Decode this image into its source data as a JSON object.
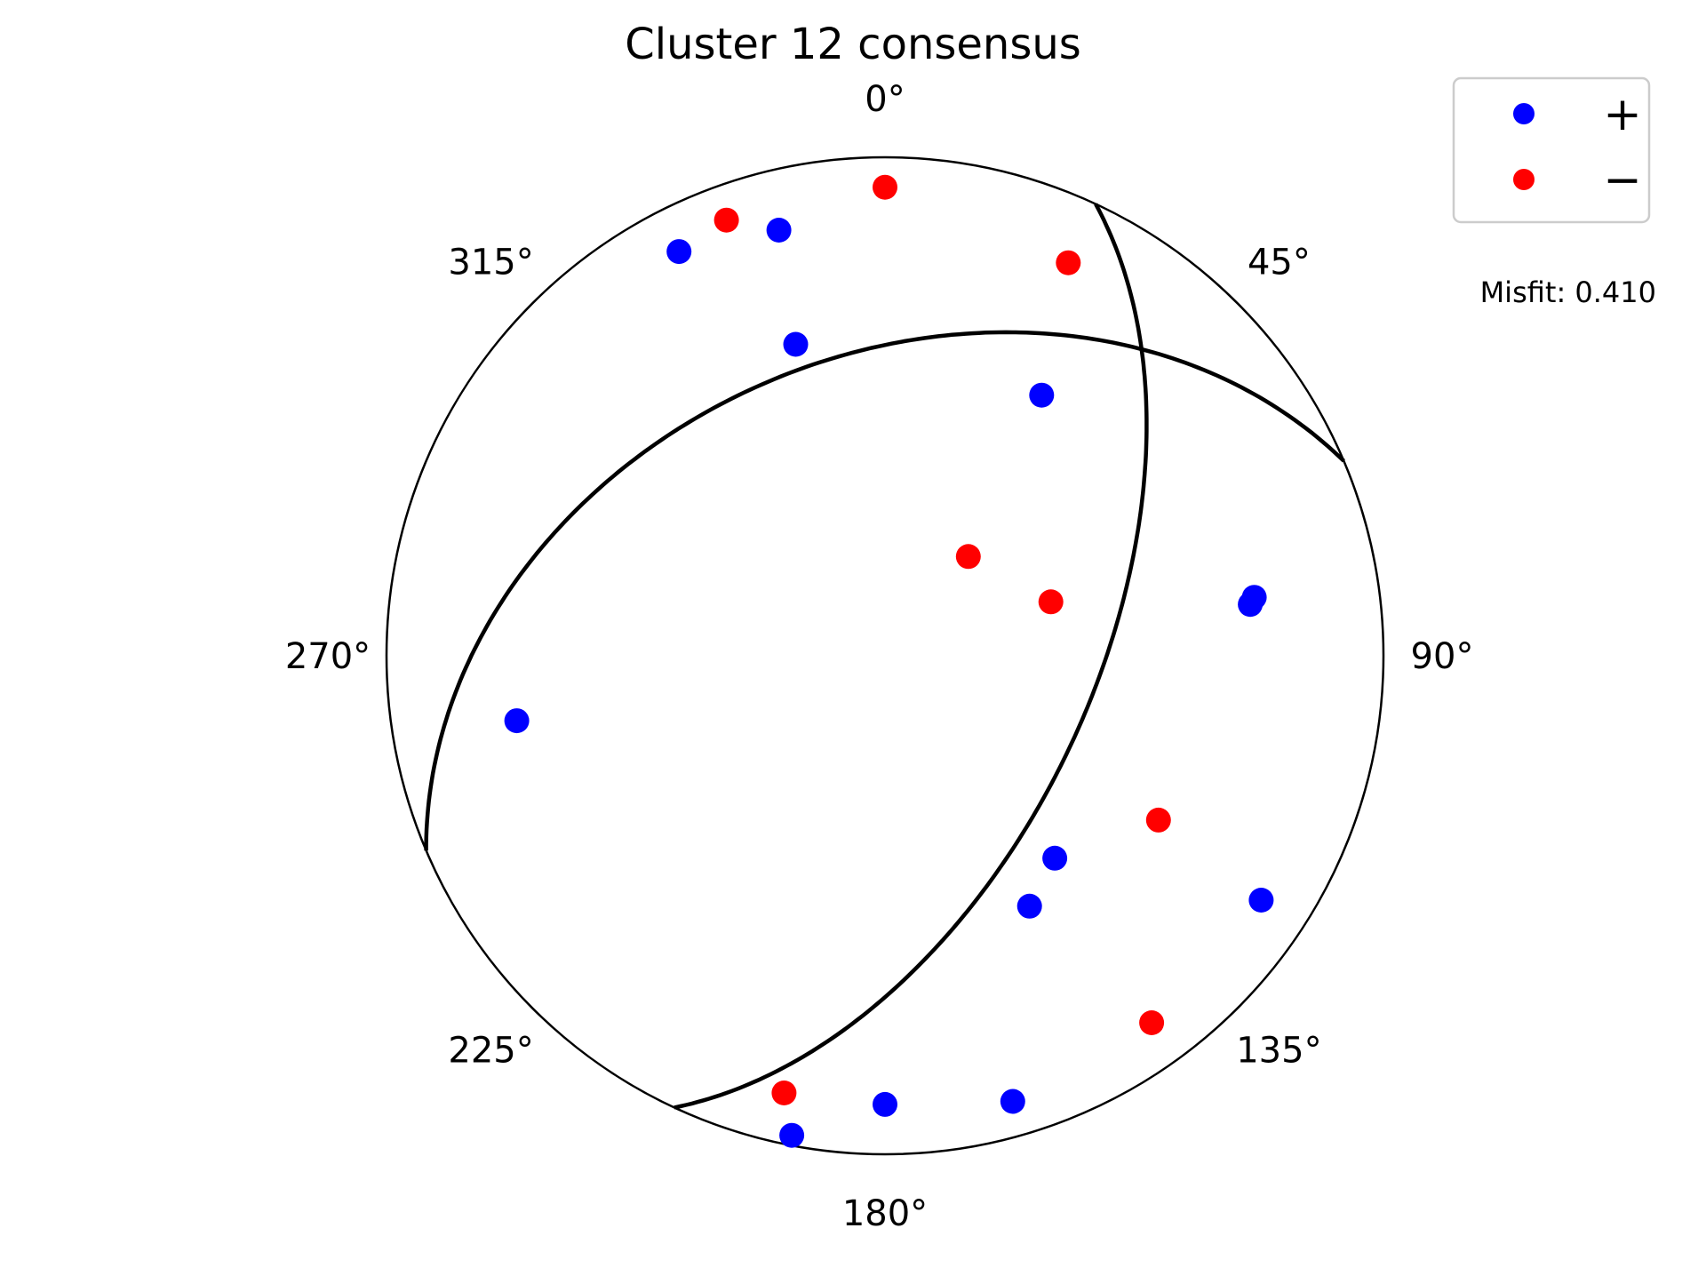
{
  "chart_data": {
    "type": "scatter",
    "projection": "polar-stereonet",
    "title": "Cluster 12 consensus",
    "angle_ticks": [
      {
        "deg": 0,
        "label": "0°"
      },
      {
        "deg": 45,
        "label": "45°"
      },
      {
        "deg": 90,
        "label": "90°"
      },
      {
        "deg": 135,
        "label": "135°"
      },
      {
        "deg": 180,
        "label": "180°"
      },
      {
        "deg": 225,
        "label": "225°"
      },
      {
        "deg": 270,
        "label": "270°"
      },
      {
        "deg": 315,
        "label": "315°"
      }
    ],
    "radius_range": [
      0,
      1
    ],
    "grid": false,
    "legend_position": "top-right",
    "misfit_label": "Misfit: 0.410",
    "series": [
      {
        "name": "+",
        "color": "#0000ff",
        "points": [
          {
            "azimuth": 333,
            "r": 0.91
          },
          {
            "azimuth": 346,
            "r": 0.88
          },
          {
            "azimuth": 344,
            "r": 0.65
          },
          {
            "azimuth": 31,
            "r": 0.61
          },
          {
            "azimuth": 81,
            "r": 0.75
          },
          {
            "azimuth": 260,
            "r": 0.75
          },
          {
            "azimuth": 123,
            "r": 0.9
          },
          {
            "azimuth": 140,
            "r": 0.53
          },
          {
            "azimuth": 150,
            "r": 0.58
          },
          {
            "azimuth": 180,
            "r": 0.9
          },
          {
            "azimuth": 164,
            "r": 0.93
          },
          {
            "azimuth": 191,
            "r": 0.98
          },
          {
            "azimuth": 82,
            "r": 0.74
          }
        ]
      },
      {
        "name": "−",
        "color": "#ff0000",
        "points": [
          {
            "azimuth": 340,
            "r": 0.93
          },
          {
            "azimuth": 360,
            "r": 0.94
          },
          {
            "azimuth": 25,
            "r": 0.87
          },
          {
            "azimuth": 40,
            "r": 0.26
          },
          {
            "azimuth": 72,
            "r": 0.35
          },
          {
            "azimuth": 121,
            "r": 0.64
          },
          {
            "azimuth": 144,
            "r": 0.91
          },
          {
            "azimuth": 193,
            "r": 0.9
          }
        ]
      }
    ],
    "nodal_planes": [
      {
        "strike": 25,
        "dip": 56
      },
      {
        "strike": 247,
        "dip": 40
      }
    ]
  }
}
